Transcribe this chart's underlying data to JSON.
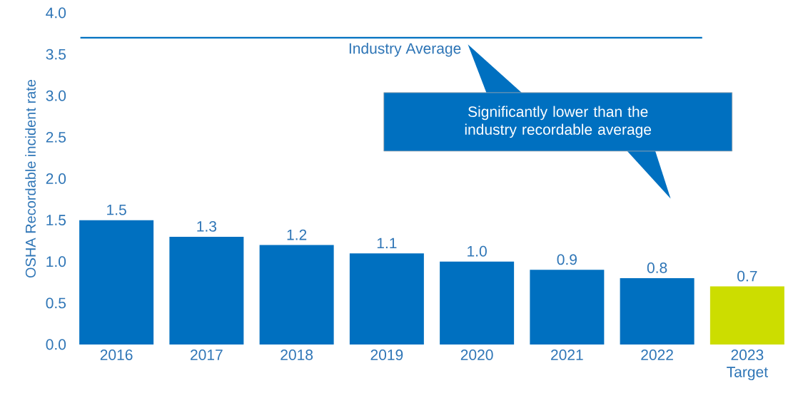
{
  "chart_data": {
    "type": "bar",
    "ylabel": "OSHA Recordable incident rate",
    "categories": [
      "2016",
      "2017",
      "2018",
      "2019",
      "2020",
      "2021",
      "2022",
      "2023 Target"
    ],
    "values": [
      1.5,
      1.3,
      1.2,
      1.1,
      1.0,
      0.9,
      0.8,
      0.7
    ],
    "colors": [
      "#0070c0",
      "#0070c0",
      "#0070c0",
      "#0070c0",
      "#0070c0",
      "#0070c0",
      "#0070c0",
      "#ccdd00"
    ],
    "value_labels": [
      "1.5",
      "1.3",
      "1.2",
      "1.1",
      "1.0",
      "0.9",
      "0.8",
      "0.7"
    ],
    "ylim": [
      0,
      4
    ],
    "yticks": [
      {
        "value": 0,
        "label": "0.0"
      },
      {
        "value": 0.5,
        "label": "0.5"
      },
      {
        "value": 1,
        "label": "1.0"
      },
      {
        "value": 1.5,
        "label": "1.5"
      },
      {
        "value": 2,
        "label": "2.0"
      },
      {
        "value": 2.5,
        "label": "2.5"
      },
      {
        "value": 3,
        "label": "3.0"
      },
      {
        "value": 3.5,
        "label": "3.5"
      },
      {
        "value": 4,
        "label": "4.0"
      }
    ],
    "ref_lines": [
      {
        "axis": "y",
        "value": 3.7,
        "label": "Industry Average",
        "color": "#0070c0"
      }
    ],
    "annotations": [
      "Significantly lower than the industry recordable average"
    ],
    "grid": false
  }
}
